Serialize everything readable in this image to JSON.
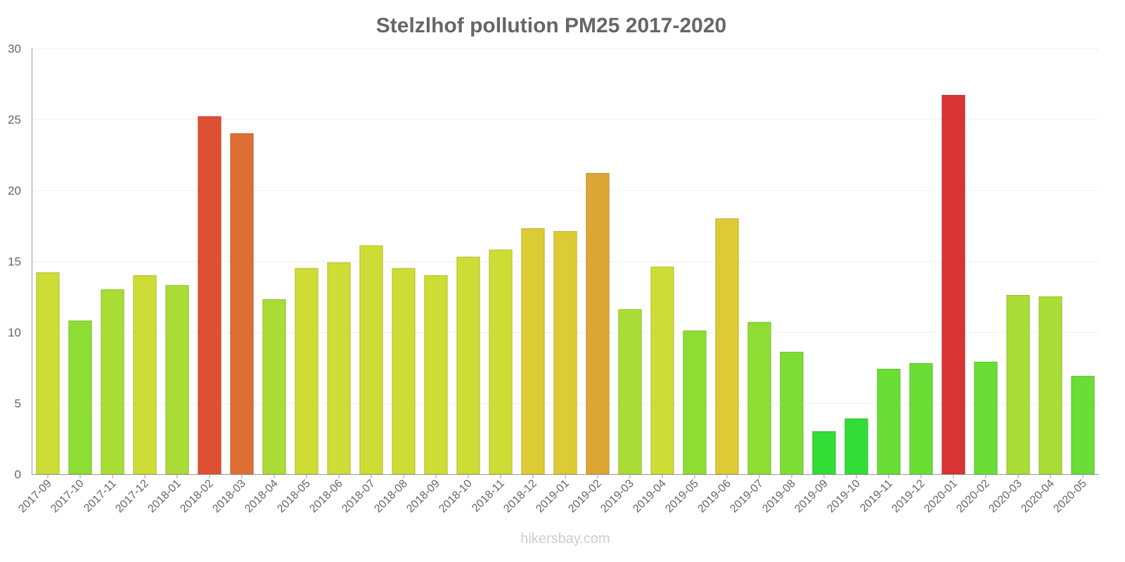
{
  "chart_data": {
    "type": "bar",
    "title": "Stelzlhof pollution PM25 2017-2020",
    "xlabel": "",
    "ylabel": "",
    "ylim": [
      0,
      30
    ],
    "yticks": [
      0,
      5,
      10,
      15,
      20,
      25,
      30
    ],
    "categories": [
      "2017-09",
      "2017-10",
      "2017-11",
      "2017-12",
      "2018-01",
      "2018-02",
      "2018-03",
      "2018-04",
      "2018-05",
      "2018-06",
      "2018-07",
      "2018-08",
      "2018-09",
      "2018-10",
      "2018-11",
      "2018-12",
      "2019-01",
      "2019-02",
      "2019-03",
      "2019-04",
      "2019-05",
      "2019-06",
      "2019-07",
      "2019-08",
      "2019-09",
      "2019-10",
      "2019-11",
      "2019-12",
      "2020-01",
      "2020-02",
      "2020-03",
      "2020-04",
      "2020-05"
    ],
    "values": [
      14.2,
      10.8,
      13,
      14,
      13.3,
      25.2,
      24,
      12.3,
      14.5,
      14.9,
      16.1,
      14.5,
      14,
      15.3,
      15.8,
      17.3,
      17.1,
      21.2,
      11.6,
      14.6,
      10.1,
      18,
      10.7,
      8.6,
      3,
      3.9,
      7.4,
      7.8,
      26.7,
      7.9,
      12.6,
      12.5,
      6.9
    ],
    "colors": [
      "#cedd35",
      "#8ddd35",
      "#aadd35",
      "#cedd35",
      "#aadd35",
      "#de5033",
      "#de6e33",
      "#aadd35",
      "#cedd35",
      "#cedd35",
      "#cedd35",
      "#cedd35",
      "#cedd35",
      "#cedd35",
      "#cedd35",
      "#dccb34",
      "#dccb34",
      "#dca534",
      "#aadd35",
      "#cedd35",
      "#8ddd35",
      "#dccb34",
      "#8ddd35",
      "#7ddd35",
      "#33dd35",
      "#33dd35",
      "#6ade35",
      "#6ade35",
      "#d93434",
      "#6ade35",
      "#aadd35",
      "#aadd35",
      "#6ade35"
    ],
    "grid": true,
    "legend": "none"
  },
  "watermark": "hikersbay.com"
}
